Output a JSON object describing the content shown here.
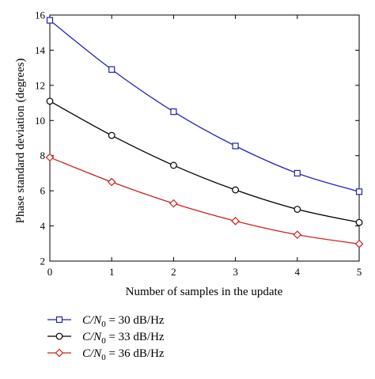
{
  "chart_data": {
    "type": "line",
    "title": "",
    "xlabel": "Number of samples in the update",
    "ylabel": "Phase standard deviation (degrees)",
    "x": [
      0,
      1,
      2,
      3,
      4,
      5
    ],
    "xlim": [
      0,
      5
    ],
    "ylim": [
      2,
      16
    ],
    "xticks": [
      "0",
      "1",
      "2",
      "3",
      "4",
      "5"
    ],
    "yticks": [
      "2",
      "4",
      "6",
      "8",
      "10",
      "12",
      "14",
      "16"
    ],
    "grid": false,
    "legend_position": "below the plot",
    "series": [
      {
        "label_var": "C/N",
        "label_sub": "0",
        "label_value": " = 30 dB/Hz",
        "color": "#2222bb",
        "marker": "square",
        "values": [
          15.7,
          12.9,
          10.5,
          8.55,
          7.0,
          5.95
        ]
      },
      {
        "label_var": "C/N",
        "label_sub": "0",
        "label_value": " = 33 dB/Hz",
        "color": "#000000",
        "marker": "circle",
        "values": [
          11.1,
          9.15,
          7.45,
          6.05,
          4.95,
          4.2
        ]
      },
      {
        "label_var": "C/N",
        "label_sub": "0",
        "label_value": " = 36 dB/Hz",
        "color": "#cc2222",
        "marker": "diamond",
        "values": [
          7.9,
          6.5,
          5.28,
          4.28,
          3.5,
          2.98
        ]
      }
    ]
  }
}
